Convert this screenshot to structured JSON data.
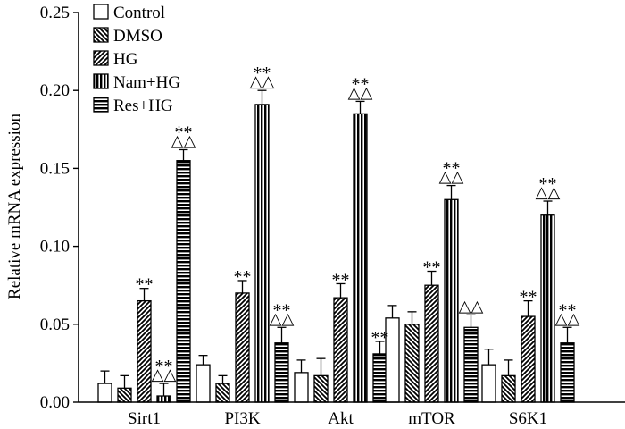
{
  "chart_data": {
    "type": "bar",
    "title": "",
    "xlabel": "",
    "ylabel": "Relative mRNA expression",
    "ylim": [
      0,
      0.25
    ],
    "yticks": [
      "0.00",
      "0.05",
      "0.10",
      "0.15",
      "0.20",
      "0.25"
    ],
    "categories": [
      "Sirt1",
      "PI3K",
      "Akt",
      "mTOR",
      "S6K1"
    ],
    "legend_position": "top-left",
    "series": [
      {
        "name": "Control",
        "pattern": "empty",
        "values": [
          0.012,
          0.024,
          0.019,
          0.054,
          0.024
        ],
        "errors": [
          0.008,
          0.006,
          0.008,
          0.008,
          0.01
        ],
        "stars": [
          "",
          "",
          "",
          "",
          ""
        ],
        "triangles": [
          "",
          "",
          "",
          "",
          ""
        ]
      },
      {
        "name": "DMSO",
        "pattern": "diag-back",
        "values": [
          0.009,
          0.012,
          0.017,
          0.05,
          0.017
        ],
        "errors": [
          0.008,
          0.005,
          0.011,
          0.008,
          0.01
        ],
        "stars": [
          "",
          "",
          "",
          "",
          ""
        ],
        "triangles": [
          "",
          "",
          "",
          "",
          ""
        ]
      },
      {
        "name": "HG",
        "pattern": "diag-fwd",
        "values": [
          0.065,
          0.07,
          0.067,
          0.075,
          0.055
        ],
        "errors": [
          0.008,
          0.008,
          0.009,
          0.009,
          0.01
        ],
        "stars": [
          "**",
          "**",
          "**",
          "**",
          "**"
        ],
        "triangles": [
          "",
          "",
          "",
          "",
          ""
        ]
      },
      {
        "name": "Nam+HG",
        "pattern": "vertical",
        "values": [
          0.004,
          0.191,
          0.185,
          0.13,
          0.12
        ],
        "errors": [
          0.008,
          0.009,
          0.008,
          0.009,
          0.009
        ],
        "stars": [
          "**",
          "**",
          "**",
          "**",
          "**"
        ],
        "triangles": [
          "△△",
          "△△",
          "△△",
          "△△",
          "△△"
        ]
      },
      {
        "name": "Res+HG",
        "pattern": "horizontal",
        "values": [
          0.155,
          0.038,
          0.031,
          0.048,
          0.038
        ],
        "errors": [
          0.007,
          0.01,
          0.008,
          0.008,
          0.01
        ],
        "stars": [
          "**",
          "**",
          "**",
          "",
          "**"
        ],
        "triangles": [
          "△△",
          "△△",
          "",
          "△△",
          "△△"
        ]
      }
    ]
  }
}
